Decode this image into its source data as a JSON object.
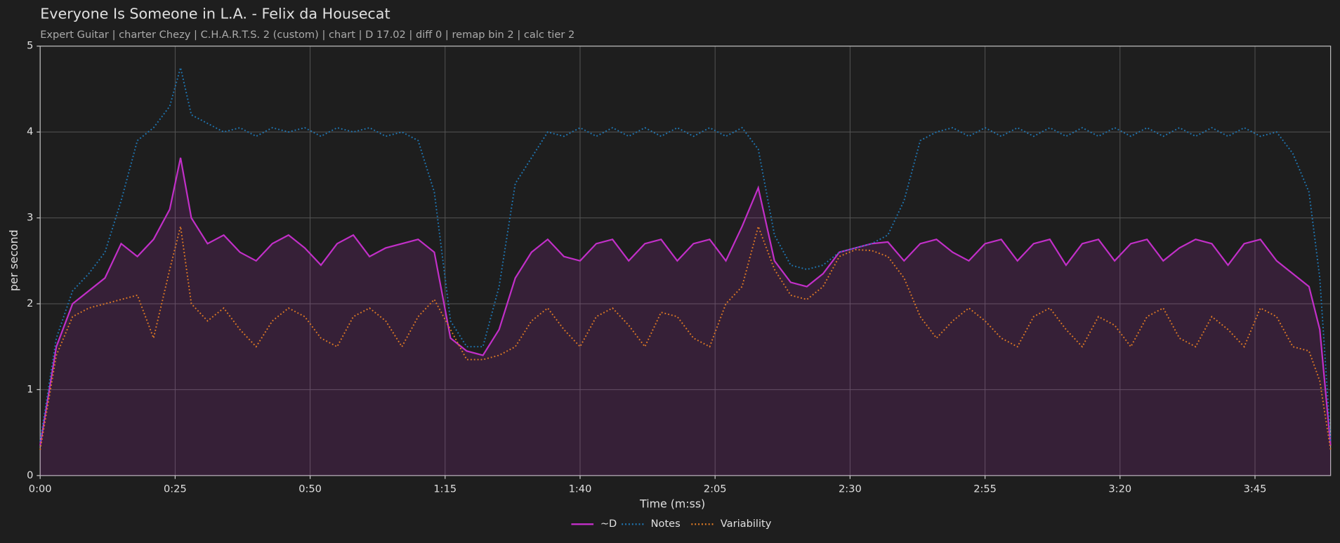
{
  "chart_data": {
    "type": "line",
    "title": "Everyone Is Someone in L.A. - Felix da Housecat",
    "subtitle": "Expert Guitar  |  charter Chezy  |  C.H.A.R.T.S. 2 (custom)  |  chart  |  D 17.02  |  diff 0  |  remap bin 2  |  calc tier 2",
    "xlabel": "Time (m:ss)",
    "ylabel": "per second",
    "x": [
      0,
      3,
      6,
      9,
      12,
      15,
      18,
      21,
      24,
      26,
      28,
      31,
      34,
      37,
      40,
      43,
      46,
      49,
      52,
      55,
      58,
      61,
      64,
      67,
      70,
      73,
      76,
      79,
      82,
      85,
      88,
      91,
      94,
      97,
      100,
      103,
      106,
      109,
      112,
      115,
      118,
      121,
      124,
      127,
      130,
      133,
      136,
      139,
      142,
      145,
      148,
      151,
      154,
      157,
      160,
      163,
      166,
      169,
      172,
      175,
      178,
      181,
      184,
      187,
      190,
      193,
      196,
      199,
      202,
      205,
      208,
      211,
      214,
      217,
      220,
      223,
      226,
      229,
      232,
      235,
      237,
      239
    ],
    "series": [
      {
        "name": "~D",
        "color": "#c22fc8",
        "linestyle": "solid",
        "fill": true,
        "values": [
          0.35,
          1.5,
          2.0,
          2.15,
          2.3,
          2.7,
          2.55,
          2.75,
          3.1,
          3.7,
          3.0,
          2.7,
          2.8,
          2.6,
          2.5,
          2.7,
          2.8,
          2.65,
          2.45,
          2.7,
          2.8,
          2.55,
          2.65,
          2.7,
          2.75,
          2.6,
          1.6,
          1.45,
          1.4,
          1.7,
          2.3,
          2.6,
          2.75,
          2.55,
          2.5,
          2.7,
          2.75,
          2.5,
          2.7,
          2.75,
          2.5,
          2.7,
          2.75,
          2.5,
          2.9,
          3.35,
          2.5,
          2.25,
          2.2,
          2.35,
          2.6,
          2.65,
          2.7,
          2.72,
          2.5,
          2.7,
          2.75,
          2.6,
          2.5,
          2.7,
          2.75,
          2.5,
          2.7,
          2.75,
          2.45,
          2.7,
          2.75,
          2.5,
          2.7,
          2.75,
          2.5,
          2.65,
          2.75,
          2.7,
          2.45,
          2.7,
          2.75,
          2.5,
          2.35,
          2.2,
          1.7,
          0.35
        ]
      },
      {
        "name": "Notes",
        "color": "#1f77b4",
        "linestyle": "dotted",
        "fill": false,
        "values": [
          0.4,
          1.6,
          2.15,
          2.35,
          2.6,
          3.2,
          3.9,
          4.05,
          4.3,
          4.75,
          4.2,
          4.1,
          4.0,
          4.05,
          3.95,
          4.05,
          4.0,
          4.05,
          3.95,
          4.05,
          4.0,
          4.05,
          3.95,
          4.0,
          3.9,
          3.3,
          1.8,
          1.5,
          1.5,
          2.2,
          3.4,
          3.7,
          4.0,
          3.95,
          4.05,
          3.95,
          4.05,
          3.95,
          4.05,
          3.95,
          4.05,
          3.95,
          4.05,
          3.95,
          4.05,
          3.8,
          2.8,
          2.45,
          2.4,
          2.45,
          2.6,
          2.65,
          2.7,
          2.8,
          3.2,
          3.9,
          4.0,
          4.05,
          3.95,
          4.05,
          3.95,
          4.05,
          3.95,
          4.05,
          3.95,
          4.05,
          3.95,
          4.05,
          3.95,
          4.05,
          3.95,
          4.05,
          3.95,
          4.05,
          3.95,
          4.05,
          3.95,
          4.0,
          3.75,
          3.3,
          2.3,
          0.4
        ]
      },
      {
        "name": "Variability",
        "color": "#e07b24",
        "linestyle": "dotted",
        "fill": false,
        "values": [
          0.3,
          1.4,
          1.85,
          1.95,
          2.0,
          2.05,
          2.1,
          1.6,
          2.4,
          2.9,
          2.0,
          1.8,
          1.95,
          1.7,
          1.5,
          1.8,
          1.95,
          1.85,
          1.6,
          1.5,
          1.85,
          1.95,
          1.8,
          1.5,
          1.85,
          2.05,
          1.7,
          1.35,
          1.35,
          1.4,
          1.5,
          1.8,
          1.95,
          1.7,
          1.5,
          1.85,
          1.95,
          1.75,
          1.5,
          1.9,
          1.85,
          1.6,
          1.5,
          2.0,
          2.2,
          2.9,
          2.4,
          2.1,
          2.05,
          2.2,
          2.55,
          2.63,
          2.62,
          2.55,
          2.3,
          1.85,
          1.6,
          1.8,
          1.95,
          1.8,
          1.6,
          1.5,
          1.85,
          1.95,
          1.7,
          1.5,
          1.85,
          1.75,
          1.5,
          1.85,
          1.95,
          1.6,
          1.5,
          1.85,
          1.7,
          1.5,
          1.95,
          1.85,
          1.5,
          1.45,
          1.1,
          0.3
        ]
      }
    ],
    "xlim": [
      0,
      239
    ],
    "xticks": [
      {
        "value": 0,
        "label": "0:00"
      },
      {
        "value": 25,
        "label": "0:25"
      },
      {
        "value": 50,
        "label": "0:50"
      },
      {
        "value": 75,
        "label": "1:15"
      },
      {
        "value": 100,
        "label": "1:40"
      },
      {
        "value": 125,
        "label": "2:05"
      },
      {
        "value": 150,
        "label": "2:30"
      },
      {
        "value": 175,
        "label": "2:55"
      },
      {
        "value": 200,
        "label": "3:20"
      },
      {
        "value": 225,
        "label": "3:45"
      }
    ],
    "ylim": [
      0,
      5
    ],
    "yticks": [
      0,
      1,
      2,
      3,
      4,
      5
    ],
    "grid": true,
    "legend": "bottom"
  }
}
